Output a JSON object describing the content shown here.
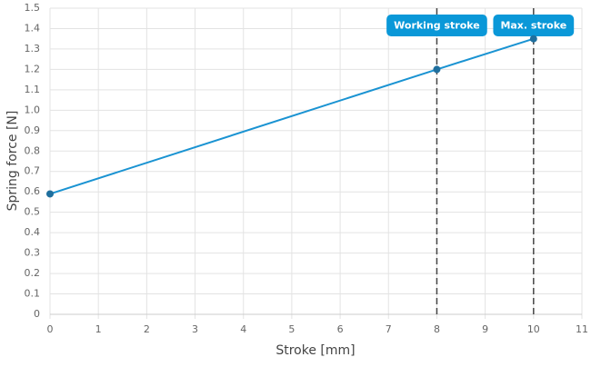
{
  "chart_data": {
    "type": "line",
    "x_label": "Stroke [mm]",
    "y_label": "Spring force [N]",
    "x": [
      0,
      8,
      10
    ],
    "values": [
      0.59,
      1.2,
      1.35
    ],
    "color": "#1a93d2",
    "xlim": [
      0,
      11
    ],
    "xticks": [
      0,
      1,
      2,
      3,
      4,
      5,
      6,
      7,
      8,
      9,
      10,
      11
    ],
    "ylim": [
      0,
      1.5
    ],
    "yticks": [
      0,
      0.1,
      0.2,
      0.3,
      0.4,
      0.5,
      0.6,
      0.7,
      0.8,
      0.9,
      {
        "value": 1,
        "label": "1.0"
      },
      1.1,
      1.2,
      1.3,
      1.4,
      1.5
    ],
    "grid": true,
    "annotations": [
      {
        "x": 8,
        "label": "Working stroke"
      },
      {
        "x": 10,
        "label": "Max. stroke"
      }
    ]
  }
}
